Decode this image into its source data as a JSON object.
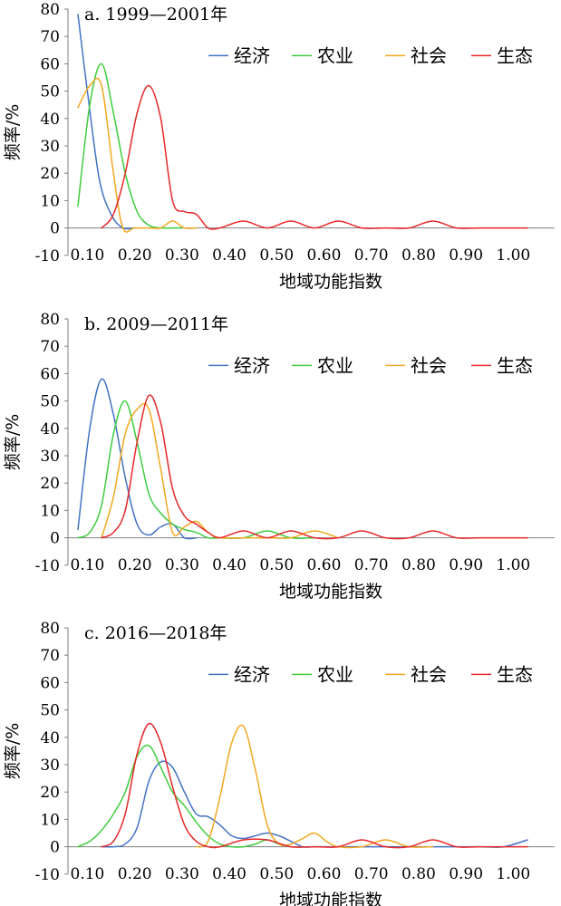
{
  "figure": {
    "legend": [
      {
        "name": "经济",
        "color": "#4472C4"
      },
      {
        "name": "农业",
        "color": "#3ECC3E"
      },
      {
        "name": "社会",
        "color": "#F0A81F"
      },
      {
        "name": "生态",
        "color": "#E8282A"
      }
    ]
  },
  "chart_data": [
    {
      "type": "line",
      "title": "a. 1999—2001年",
      "xlabel": "地域功能指数",
      "ylabel": "频率/%",
      "xlim": [
        0.05,
        1.05
      ],
      "ylim": [
        -10,
        80
      ],
      "xticks": [
        "0.10",
        "0.20",
        "0.30",
        "0.40",
        "0.50",
        "0.60",
        "0.70",
        "0.80",
        "0.90",
        "1.00"
      ],
      "yticks": [
        "-10",
        "0",
        "10",
        "20",
        "30",
        "40",
        "50",
        "60",
        "70",
        "80"
      ],
      "legend_position": "top-right",
      "series": [
        {
          "name": "经济",
          "color": "#4472C4",
          "x": [
            0.08,
            0.1,
            0.125,
            0.15,
            0.175,
            0.2
          ],
          "y": [
            78,
            50,
            18,
            5,
            0,
            0
          ]
        },
        {
          "name": "农业",
          "color": "#3ECC3E",
          "x": [
            0.08,
            0.105,
            0.13,
            0.155,
            0.18,
            0.205,
            0.23,
            0.255,
            0.28,
            0.3
          ],
          "y": [
            8,
            45,
            60,
            42,
            20,
            6,
            1,
            0,
            0,
            0
          ]
        },
        {
          "name": "社会",
          "color": "#F0A81F",
          "x": [
            0.08,
            0.105,
            0.13,
            0.155,
            0.175,
            0.2,
            0.23,
            0.255,
            0.28,
            0.305,
            0.33
          ],
          "y": [
            44,
            52,
            52,
            20,
            0,
            0,
            0,
            0,
            2.5,
            0,
            0
          ]
        },
        {
          "name": "生态",
          "color": "#E8282A",
          "x": [
            0.13,
            0.155,
            0.18,
            0.205,
            0.23,
            0.255,
            0.28,
            0.305,
            0.33,
            0.355,
            0.38,
            0.43,
            0.48,
            0.53,
            0.58,
            0.63,
            0.68,
            0.73,
            0.78,
            0.83,
            0.88,
            0.93,
            0.98,
            1.03
          ],
          "y": [
            0,
            5,
            20,
            42,
            52,
            40,
            10,
            6,
            5,
            0,
            0,
            2.5,
            0,
            2.5,
            0,
            2.5,
            0,
            0,
            0,
            2.5,
            0,
            0,
            0,
            0
          ]
        }
      ]
    },
    {
      "type": "line",
      "title": "b. 2009—2011年",
      "xlabel": "地域功能指数",
      "ylabel": "频率/%",
      "xlim": [
        0.05,
        1.05
      ],
      "ylim": [
        -10,
        80
      ],
      "xticks": [
        "0.10",
        "0.20",
        "0.30",
        "0.40",
        "0.50",
        "0.60",
        "0.70",
        "0.80",
        "0.90",
        "1.00"
      ],
      "yticks": [
        "-10",
        "0",
        "10",
        "20",
        "30",
        "40",
        "50",
        "60",
        "70",
        "80"
      ],
      "legend_position": "top-right",
      "series": [
        {
          "name": "经济",
          "color": "#4472C4",
          "x": [
            0.08,
            0.105,
            0.13,
            0.155,
            0.18,
            0.205,
            0.23,
            0.255,
            0.28,
            0.305,
            0.33
          ],
          "y": [
            3,
            40,
            58,
            45,
            22,
            5,
            1,
            4,
            5,
            0,
            0
          ]
        },
        {
          "name": "农业",
          "color": "#3ECC3E",
          "x": [
            0.08,
            0.105,
            0.13,
            0.155,
            0.18,
            0.205,
            0.23,
            0.255,
            0.28,
            0.305,
            0.33,
            0.355,
            0.38,
            0.43,
            0.48,
            0.53,
            0.58
          ],
          "y": [
            0,
            2,
            12,
            38,
            50,
            35,
            16,
            9,
            5,
            3,
            2,
            0,
            0,
            0,
            2.5,
            0,
            0
          ]
        },
        {
          "name": "社会",
          "color": "#F0A81F",
          "x": [
            0.13,
            0.155,
            0.18,
            0.205,
            0.23,
            0.255,
            0.28,
            0.305,
            0.33,
            0.355,
            0.38,
            0.43,
            0.48,
            0.53,
            0.58,
            0.63
          ],
          "y": [
            0,
            15,
            38,
            47,
            47,
            25,
            2,
            4,
            6,
            2,
            0,
            0,
            0,
            0,
            2.5,
            0
          ]
        },
        {
          "name": "生态",
          "color": "#E8282A",
          "x": [
            0.13,
            0.155,
            0.18,
            0.205,
            0.23,
            0.255,
            0.28,
            0.305,
            0.33,
            0.355,
            0.38,
            0.43,
            0.48,
            0.53,
            0.58,
            0.63,
            0.68,
            0.73,
            0.78,
            0.83,
            0.88,
            0.93,
            0.98,
            1.03
          ],
          "y": [
            0,
            2,
            10,
            35,
            52,
            42,
            18,
            8,
            5,
            2,
            0,
            2.5,
            0,
            2.5,
            0,
            0,
            2.5,
            0,
            0,
            2.5,
            0,
            0,
            0,
            0
          ]
        }
      ]
    },
    {
      "type": "line",
      "title": "c. 2016—2018年",
      "xlabel": "地域功能指数",
      "ylabel": "频率/%",
      "xlim": [
        0.05,
        1.05
      ],
      "ylim": [
        -10,
        80
      ],
      "xticks": [
        "0.10",
        "0.20",
        "0.30",
        "0.40",
        "0.50",
        "0.60",
        "0.70",
        "0.80",
        "0.90",
        "1.00"
      ],
      "yticks": [
        "-10",
        "0",
        "10",
        "20",
        "30",
        "40",
        "50",
        "60",
        "70",
        "80"
      ],
      "legend_position": "top-right",
      "series": [
        {
          "name": "经济",
          "color": "#4472C4",
          "x": [
            0.13,
            0.155,
            0.18,
            0.205,
            0.23,
            0.255,
            0.28,
            0.305,
            0.33,
            0.355,
            0.38,
            0.405,
            0.43,
            0.455,
            0.48,
            0.505,
            0.53,
            0.555,
            0.58,
            0.63,
            0.68,
            0.73,
            0.78,
            0.83,
            0.88,
            0.93,
            0.98,
            1.03
          ],
          "y": [
            0,
            0,
            1,
            7,
            24,
            31,
            29,
            20,
            12,
            11,
            8,
            4,
            3,
            4,
            5,
            4,
            2,
            0,
            0,
            0,
            0,
            0,
            0,
            0,
            0,
            0,
            0,
            2.5
          ]
        },
        {
          "name": "农业",
          "color": "#3ECC3E",
          "x": [
            0.08,
            0.105,
            0.13,
            0.155,
            0.18,
            0.205,
            0.23,
            0.255,
            0.28,
            0.305,
            0.33,
            0.355,
            0.38,
            0.405,
            0.43,
            0.455,
            0.48,
            0.505,
            0.53
          ],
          "y": [
            0,
            2,
            6,
            12,
            20,
            33,
            37,
            29,
            20,
            15,
            9,
            4,
            1,
            0,
            0,
            1,
            2.5,
            1,
            0
          ]
        },
        {
          "name": "社会",
          "color": "#F0A81F",
          "x": [
            0.33,
            0.355,
            0.38,
            0.405,
            0.43,
            0.455,
            0.48,
            0.505,
            0.53,
            0.555,
            0.58,
            0.605,
            0.63,
            0.68,
            0.73,
            0.78,
            0.83
          ],
          "y": [
            0,
            2,
            18,
            38,
            44,
            28,
            8,
            1,
            1,
            3,
            5,
            2,
            0,
            0,
            2.5,
            0,
            0
          ]
        },
        {
          "name": "生态",
          "color": "#E8282A",
          "x": [
            0.13,
            0.155,
            0.18,
            0.205,
            0.23,
            0.255,
            0.28,
            0.305,
            0.33,
            0.355,
            0.38,
            0.43,
            0.48,
            0.53,
            0.58,
            0.63,
            0.68,
            0.73,
            0.78,
            0.83,
            0.88,
            0.93,
            0.98,
            1.03
          ],
          "y": [
            0,
            2,
            12,
            34,
            45,
            38,
            22,
            8,
            2,
            0,
            0,
            2.5,
            2.5,
            0,
            0,
            0,
            2.5,
            0,
            0,
            2.5,
            0,
            0,
            0,
            0
          ]
        }
      ]
    }
  ]
}
